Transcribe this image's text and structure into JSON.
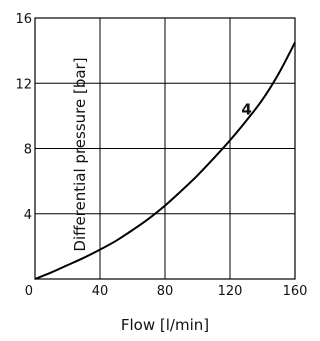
{
  "chart_data": {
    "type": "line",
    "title": "",
    "xlabel": "Flow [l/min]",
    "ylabel": "Differential pressure [bar]",
    "xlim": [
      0,
      160
    ],
    "ylim": [
      0,
      16
    ],
    "x_ticks": [
      0,
      40,
      80,
      120,
      160
    ],
    "x_tick_labels": [
      "0",
      "40",
      "80",
      "120",
      "160"
    ],
    "y_ticks": [
      4,
      8,
      12,
      16
    ],
    "y_tick_labels": [
      "4",
      "8",
      "12",
      "16"
    ],
    "grid": true,
    "series": [
      {
        "name": "4",
        "x": [
          0,
          10,
          20,
          30,
          40,
          50,
          60,
          70,
          80,
          90,
          100,
          110,
          120,
          130,
          140,
          150,
          160
        ],
        "y": [
          0,
          0.4,
          0.85,
          1.3,
          1.8,
          2.35,
          3.0,
          3.7,
          4.5,
          5.4,
          6.35,
          7.4,
          8.5,
          9.7,
          11.0,
          12.6,
          14.5
        ]
      }
    ],
    "annotations": [
      {
        "text": "4",
        "x": 127,
        "y": 10.4
      }
    ]
  }
}
